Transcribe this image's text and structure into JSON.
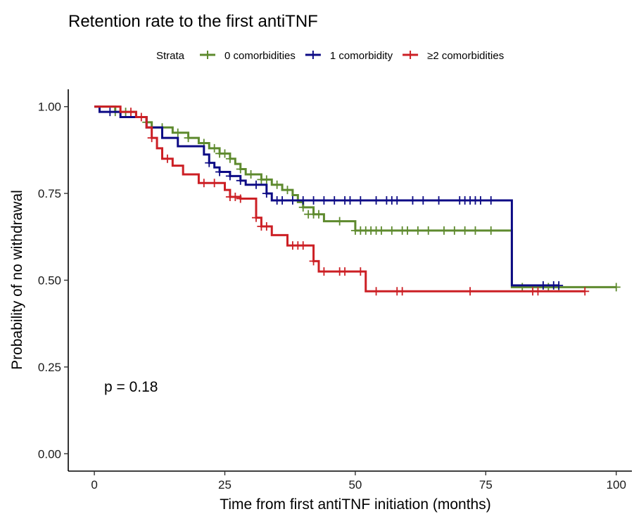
{
  "chart_data": {
    "type": "line",
    "title": "Retention rate to the first antiTNF",
    "xlabel": "Time from first antiTNF initiation (months)",
    "ylabel": "Probability of no withdrawal",
    "xlim": [
      -5,
      103
    ],
    "ylim": [
      -0.05,
      1.05
    ],
    "x_ticks": [
      0,
      25,
      50,
      75,
      100
    ],
    "x_tick_labels": [
      "0",
      "25",
      "50",
      "75",
      "100"
    ],
    "y_ticks": [
      0,
      0.25,
      0.5,
      0.75,
      1.0
    ],
    "y_tick_labels": [
      "0.00",
      "0.25",
      "0.50",
      "0.75",
      "1.00"
    ],
    "grid": false,
    "legend_title": "Strata",
    "legend_position": "top",
    "annotation": "p = 0.18",
    "series": [
      {
        "name": "0 comorbidities",
        "color": "#5e8a2e",
        "steps": [
          [
            0,
            1.0
          ],
          [
            4,
            0.985
          ],
          [
            8,
            0.97
          ],
          [
            10,
            0.955
          ],
          [
            11,
            0.94
          ],
          [
            15,
            0.925
          ],
          [
            18,
            0.91
          ],
          [
            20,
            0.895
          ],
          [
            22,
            0.88
          ],
          [
            24,
            0.865
          ],
          [
            26,
            0.85
          ],
          [
            27,
            0.835
          ],
          [
            28,
            0.82
          ],
          [
            29,
            0.805
          ],
          [
            32,
            0.79
          ],
          [
            34,
            0.775
          ],
          [
            36,
            0.76
          ],
          [
            38,
            0.745
          ],
          [
            39,
            0.725
          ],
          [
            40,
            0.71
          ],
          [
            42,
            0.69
          ],
          [
            44,
            0.67
          ],
          [
            50,
            0.643
          ],
          [
            80,
            0.48
          ],
          [
            100,
            0.48
          ]
        ],
        "censors": [
          [
            4,
            0.985
          ],
          [
            6,
            0.985
          ],
          [
            10,
            0.955
          ],
          [
            13,
            0.94
          ],
          [
            16,
            0.925
          ],
          [
            18,
            0.91
          ],
          [
            21,
            0.895
          ],
          [
            23,
            0.88
          ],
          [
            24,
            0.865
          ],
          [
            25,
            0.865
          ],
          [
            26,
            0.85
          ],
          [
            28,
            0.82
          ],
          [
            30,
            0.805
          ],
          [
            32,
            0.79
          ],
          [
            33,
            0.79
          ],
          [
            35,
            0.775
          ],
          [
            37,
            0.76
          ],
          [
            40,
            0.71
          ],
          [
            41,
            0.69
          ],
          [
            42,
            0.69
          ],
          [
            43,
            0.69
          ],
          [
            47,
            0.67
          ],
          [
            50,
            0.643
          ],
          [
            51,
            0.643
          ],
          [
            52,
            0.643
          ],
          [
            53,
            0.643
          ],
          [
            54,
            0.643
          ],
          [
            55,
            0.643
          ],
          [
            57,
            0.643
          ],
          [
            59,
            0.643
          ],
          [
            60,
            0.643
          ],
          [
            62,
            0.643
          ],
          [
            64,
            0.643
          ],
          [
            67,
            0.643
          ],
          [
            69,
            0.643
          ],
          [
            71,
            0.643
          ],
          [
            73,
            0.643
          ],
          [
            76,
            0.643
          ],
          [
            82,
            0.48
          ],
          [
            87,
            0.48
          ],
          [
            89,
            0.48
          ],
          [
            100,
            0.48
          ]
        ]
      },
      {
        "name": "1 comorbidity",
        "color": "#0d0b85",
        "steps": [
          [
            0,
            1.0
          ],
          [
            1,
            0.985
          ],
          [
            5,
            0.97
          ],
          [
            10,
            0.94
          ],
          [
            13,
            0.91
          ],
          [
            16,
            0.886
          ],
          [
            21,
            0.862
          ],
          [
            22,
            0.838
          ],
          [
            23,
            0.825
          ],
          [
            24,
            0.812
          ],
          [
            26,
            0.8
          ],
          [
            28,
            0.787
          ],
          [
            29,
            0.775
          ],
          [
            33,
            0.75
          ],
          [
            34,
            0.73
          ],
          [
            80,
            0.485
          ],
          [
            89,
            0.485
          ]
        ],
        "censors": [
          [
            3,
            0.985
          ],
          [
            22,
            0.838
          ],
          [
            24,
            0.812
          ],
          [
            26,
            0.8
          ],
          [
            28,
            0.787
          ],
          [
            31,
            0.775
          ],
          [
            33,
            0.75
          ],
          [
            35,
            0.73
          ],
          [
            36,
            0.73
          ],
          [
            38,
            0.73
          ],
          [
            40,
            0.73
          ],
          [
            42,
            0.73
          ],
          [
            44,
            0.73
          ],
          [
            46,
            0.73
          ],
          [
            48,
            0.73
          ],
          [
            49,
            0.73
          ],
          [
            51,
            0.73
          ],
          [
            54,
            0.73
          ],
          [
            56,
            0.73
          ],
          [
            57,
            0.73
          ],
          [
            58,
            0.73
          ],
          [
            61,
            0.73
          ],
          [
            63,
            0.73
          ],
          [
            66,
            0.73
          ],
          [
            70,
            0.73
          ],
          [
            71,
            0.73
          ],
          [
            72,
            0.73
          ],
          [
            73,
            0.73
          ],
          [
            74,
            0.73
          ],
          [
            76,
            0.73
          ],
          [
            86,
            0.485
          ],
          [
            88,
            0.485
          ],
          [
            89,
            0.485
          ]
        ]
      },
      {
        "name": "≥2 comorbidities",
        "color": "#cc1f24",
        "steps": [
          [
            0,
            1.0
          ],
          [
            5,
            0.985
          ],
          [
            8,
            0.97
          ],
          [
            10,
            0.94
          ],
          [
            11,
            0.91
          ],
          [
            12,
            0.88
          ],
          [
            13,
            0.85
          ],
          [
            15,
            0.83
          ],
          [
            17,
            0.805
          ],
          [
            20,
            0.78
          ],
          [
            25,
            0.76
          ],
          [
            26,
            0.74
          ],
          [
            28,
            0.735
          ],
          [
            31,
            0.68
          ],
          [
            32,
            0.655
          ],
          [
            34,
            0.63
          ],
          [
            37,
            0.6
          ],
          [
            42,
            0.555
          ],
          [
            43,
            0.525
          ],
          [
            52,
            0.468
          ],
          [
            94,
            0.468
          ]
        ],
        "censors": [
          [
            7,
            0.985
          ],
          [
            9,
            0.97
          ],
          [
            11,
            0.91
          ],
          [
            14,
            0.85
          ],
          [
            21,
            0.78
          ],
          [
            23,
            0.78
          ],
          [
            26,
            0.74
          ],
          [
            27,
            0.74
          ],
          [
            28,
            0.735
          ],
          [
            31,
            0.68
          ],
          [
            32,
            0.655
          ],
          [
            33,
            0.655
          ],
          [
            38,
            0.6
          ],
          [
            39,
            0.6
          ],
          [
            40,
            0.6
          ],
          [
            42,
            0.555
          ],
          [
            44,
            0.525
          ],
          [
            47,
            0.525
          ],
          [
            48,
            0.525
          ],
          [
            51,
            0.525
          ],
          [
            54,
            0.468
          ],
          [
            58,
            0.468
          ],
          [
            59,
            0.468
          ],
          [
            72,
            0.468
          ],
          [
            84,
            0.468
          ],
          [
            85,
            0.468
          ],
          [
            94,
            0.468
          ]
        ]
      }
    ]
  }
}
